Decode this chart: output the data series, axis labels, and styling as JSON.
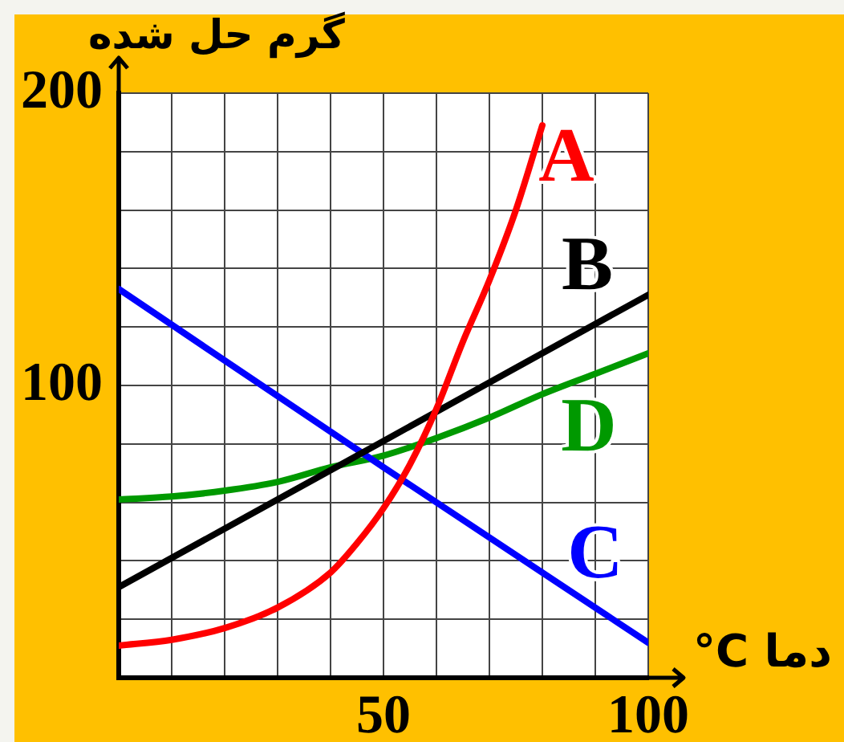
{
  "chart_data": {
    "type": "line",
    "xlabel": "°C دما",
    "ylabel": "گرم حل شده",
    "xlim": [
      0,
      100
    ],
    "ylim": [
      0,
      200
    ],
    "xticks": [
      {
        "value": 0,
        "label": null
      },
      {
        "value": 10,
        "label": null
      },
      {
        "value": 20,
        "label": null
      },
      {
        "value": 30,
        "label": null
      },
      {
        "value": 40,
        "label": null
      },
      50,
      {
        "value": 60,
        "label": null
      },
      {
        "value": 70,
        "label": null
      },
      {
        "value": 80,
        "label": null
      },
      {
        "value": 90,
        "label": null
      },
      100
    ],
    "yticks": [
      {
        "value": 0,
        "label": null
      },
      {
        "value": 20,
        "label": null
      },
      {
        "value": 40,
        "label": null
      },
      {
        "value": 60,
        "label": null
      },
      {
        "value": 80,
        "label": null
      },
      100,
      {
        "value": 120,
        "label": null
      },
      {
        "value": 140,
        "label": null
      },
      {
        "value": 160,
        "label": null
      },
      {
        "value": 180,
        "label": null
      },
      200
    ],
    "grid": true,
    "series": [
      {
        "name": "A",
        "color": "#ff0000",
        "x": [
          0,
          10,
          20,
          30,
          40,
          45,
          50,
          55,
          60,
          65,
          70,
          75,
          80
        ],
        "values": [
          11,
          13,
          17,
          24,
          36,
          46,
          58,
          73,
          92,
          115,
          136,
          160,
          189
        ]
      },
      {
        "name": "B",
        "color": "#000000",
        "x": [
          0,
          50,
          100
        ],
        "values": [
          31,
          81,
          131
        ]
      },
      {
        "name": "C",
        "color": "#0000ff",
        "x": [
          0,
          50,
          100
        ],
        "values": [
          133,
          72,
          12
        ]
      },
      {
        "name": "D",
        "color": "#009900",
        "x": [
          0,
          10,
          20,
          30,
          40,
          50,
          60,
          70,
          80,
          90,
          100
        ],
        "values": [
          61,
          62,
          64,
          67,
          72,
          76,
          82,
          89,
          97,
          104,
          111
        ]
      }
    ]
  }
}
